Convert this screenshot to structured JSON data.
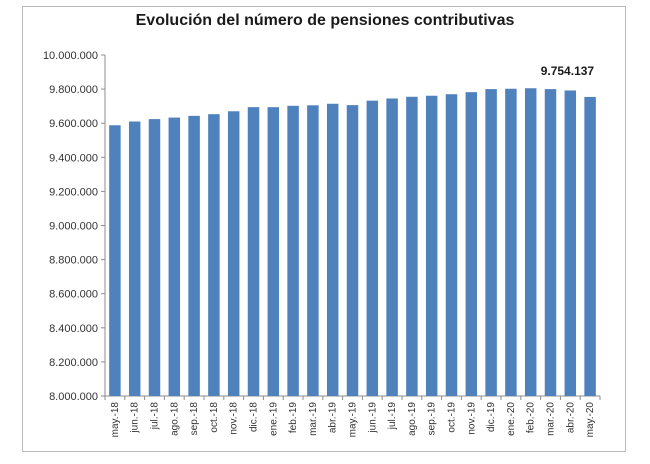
{
  "chart_data": {
    "type": "bar",
    "title": "Evolución del número de pensiones contributivas",
    "xlabel": "",
    "ylabel": "",
    "ylim": [
      8000000,
      10000000
    ],
    "yticks": [
      8000000,
      8200000,
      8400000,
      8600000,
      8800000,
      9000000,
      9200000,
      9400000,
      9600000,
      9800000,
      10000000
    ],
    "ytick_labels": [
      "8.000.000",
      "8.200.000",
      "8.400.000",
      "8.600.000",
      "8.800.000",
      "9.000.000",
      "9.200.000",
      "9.400.000",
      "9.600.000",
      "9.800.000",
      "10.000.000"
    ],
    "categories": [
      "may.-18",
      "jun.-18",
      "jul.-18",
      "ago.-18",
      "sep.-18",
      "oct.-18",
      "nov.-18",
      "dic.-18",
      "ene.-19",
      "feb.-19",
      "mar.-19",
      "abr.-19",
      "may.-19",
      "jun.-19",
      "jul.-19",
      "ago.-19",
      "sep.-19",
      "oct.-19",
      "nov.-19",
      "dic.-19",
      "ene.-20",
      "feb.-20",
      "mar.-20",
      "abr.-20",
      "may.-20"
    ],
    "values": [
      9588000,
      9610000,
      9624000,
      9633000,
      9643000,
      9653000,
      9670000,
      9694000,
      9694000,
      9702000,
      9705000,
      9714000,
      9706000,
      9732000,
      9745000,
      9755000,
      9761000,
      9770000,
      9782000,
      9800000,
      9802000,
      9805000,
      9800000,
      9792000,
      9754137
    ],
    "data_labels": [
      {
        "index": 24,
        "text": "9.754.137"
      }
    ],
    "grid": false,
    "legend": "none",
    "bar_color": "#4f81bd"
  }
}
